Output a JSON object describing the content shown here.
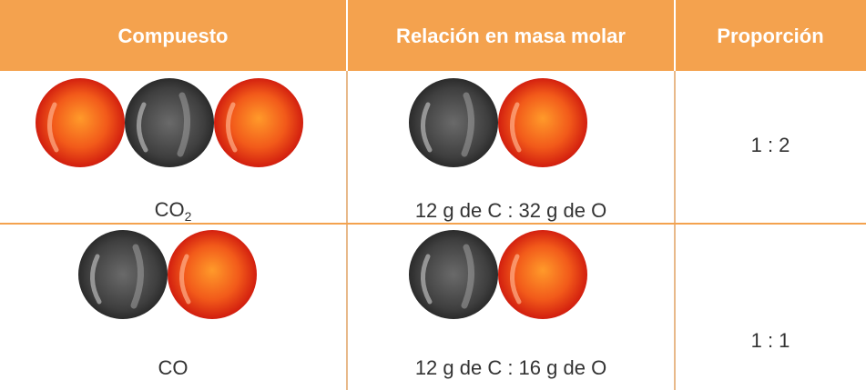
{
  "table": {
    "headers": [
      "Compuesto",
      "Relación en masa molar",
      "Proporción"
    ],
    "rows": [
      {
        "compound": {
          "formula": "CO",
          "subscript": "2"
        },
        "mass_relation": "12 g de C : 32 g de O",
        "proportion": "1 : 2"
      },
      {
        "compound": {
          "formula": "CO"
        },
        "mass_relation": "12 g de C : 16 g de O",
        "proportion": "1 : 1"
      }
    ]
  }
}
